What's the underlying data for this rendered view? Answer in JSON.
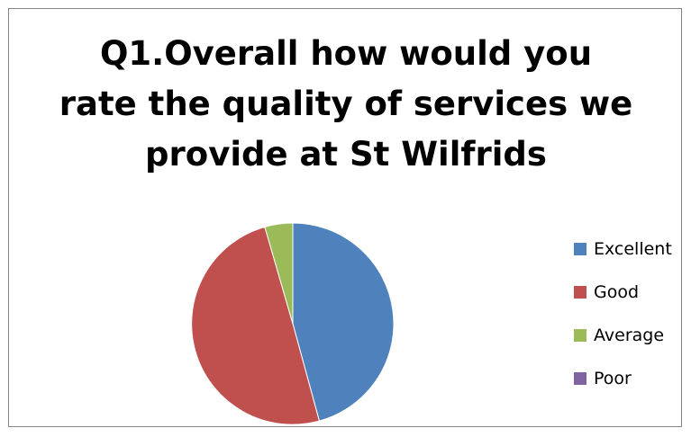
{
  "chart_data": {
    "type": "pie",
    "title_lines": [
      "Q1.Overall how would you",
      "rate the quality of services we",
      "provide at St Wilfrids"
    ],
    "categories": [
      "Excellent",
      "Good",
      "Average",
      "Poor"
    ],
    "values": [
      46,
      50,
      4.5,
      0
    ],
    "colors": [
      "#4f81bd",
      "#c0504d",
      "#9bbb59",
      "#8064a2"
    ],
    "legend_position": "right"
  }
}
